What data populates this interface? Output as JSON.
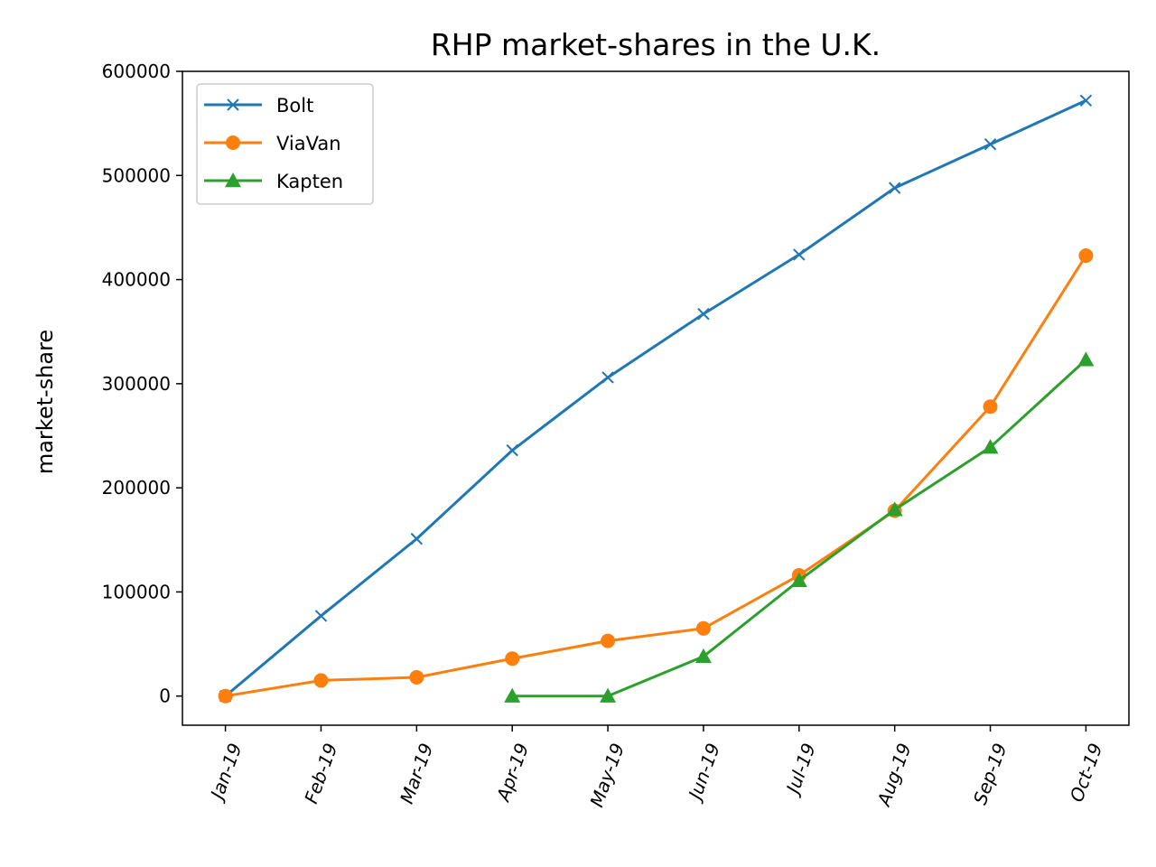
{
  "chart_data": {
    "type": "line",
    "title": "RHP market-shares in the U.K.",
    "xlabel": "",
    "ylabel": "market-share",
    "categories": [
      "Jan-19",
      "Feb-19",
      "Mar-19",
      "Apr-19",
      "May-19",
      "Jun-19",
      "Jul-19",
      "Aug-19",
      "Sep-19",
      "Oct-19"
    ],
    "ylim": [
      -28000,
      600000
    ],
    "yticks": [
      "0",
      "100000",
      "200000",
      "300000",
      "400000",
      "500000",
      "600000"
    ],
    "ytick_values": [
      0,
      100000,
      200000,
      300000,
      400000,
      500000,
      600000
    ],
    "grid": false,
    "legend_position": "upper-left",
    "series": [
      {
        "name": "Bolt",
        "color": "#1f77b4",
        "marker": "x",
        "values": [
          0,
          77000,
          151000,
          236000,
          306000,
          367000,
          424000,
          488000,
          530000,
          572000
        ]
      },
      {
        "name": "ViaVan",
        "color": "#ff7f0e",
        "marker": "circle",
        "values": [
          0,
          15000,
          18000,
          36000,
          53000,
          65000,
          116000,
          178000,
          278000,
          423000
        ]
      },
      {
        "name": "Kapten",
        "color": "#2ca02c",
        "marker": "triangle",
        "values": [
          null,
          null,
          null,
          0,
          0,
          38000,
          111000,
          179000,
          239000,
          323000
        ]
      }
    ]
  }
}
